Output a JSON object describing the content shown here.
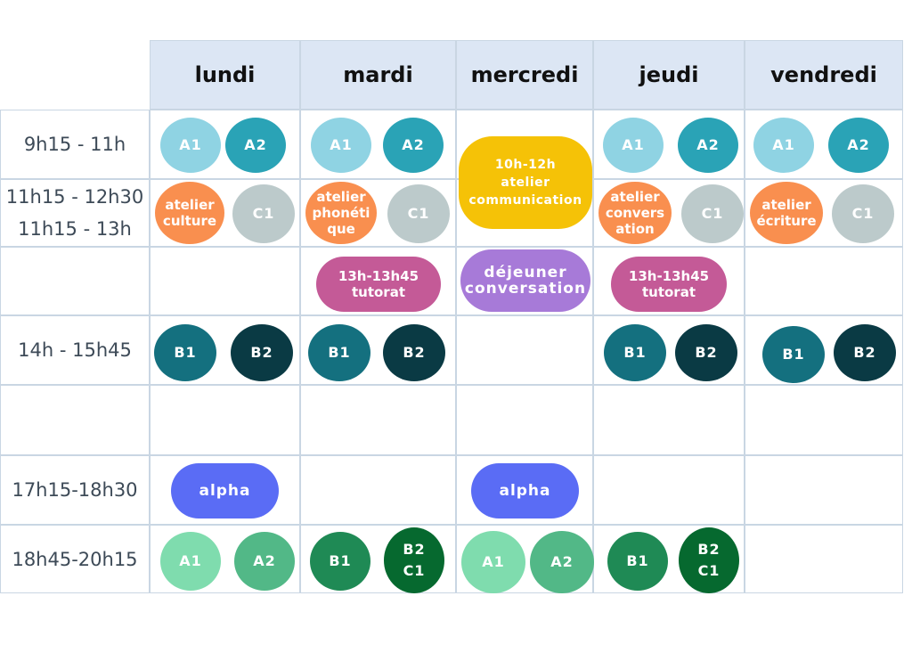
{
  "days": [
    "lundi",
    "mardi",
    "mercredi",
    "jeudi",
    "vendredi"
  ],
  "times": [
    [
      "9h15 - 11h"
    ],
    [
      "11h15 - 12h30",
      "11h15 - 13h"
    ],
    [
      ""
    ],
    [
      "14h - 15h45"
    ],
    [
      ""
    ],
    [
      "17h15-18h30"
    ],
    [
      "18h45-20h15"
    ]
  ],
  "colors": {
    "header": "#dce6f4",
    "border": "#c9d6e3",
    "a1_light": "#8fd3e3",
    "a2_teal": "#2aa3b6",
    "atelier_orange": "#f98f4f",
    "c1_grey": "#bccacb",
    "communication_yellow": "#f5c207",
    "tutorat_magenta": "#c45a97",
    "dejeuner_purple": "#a77ad8",
    "b1_teal": "#14707f",
    "b2_dark": "#0a3a44",
    "alpha_blue": "#5a6cf5",
    "eve_a1": "#7fdcae",
    "eve_a2": "#52b887",
    "eve_b1": "#1f8a55",
    "eve_b2c1": "#06692f"
  },
  "pills": [
    {
      "id": "mon-a1",
      "lines": [
        "A1"
      ],
      "color": "#8fd3e3"
    },
    {
      "id": "mon-a2",
      "lines": [
        "A2"
      ],
      "color": "#2aa3b6"
    },
    {
      "id": "tue-a1",
      "lines": [
        "A1"
      ],
      "color": "#8fd3e3"
    },
    {
      "id": "tue-a2",
      "lines": [
        "A2"
      ],
      "color": "#2aa3b6"
    },
    {
      "id": "thu-a1",
      "lines": [
        "A1"
      ],
      "color": "#8fd3e3"
    },
    {
      "id": "thu-a2",
      "lines": [
        "A2"
      ],
      "color": "#2aa3b6"
    },
    {
      "id": "fri-a1",
      "lines": [
        "A1"
      ],
      "color": "#8fd3e3"
    },
    {
      "id": "fri-a2",
      "lines": [
        "A2"
      ],
      "color": "#2aa3b6"
    },
    {
      "id": "wed-communication",
      "lines": [
        "10h-12h",
        "atelier",
        "communication"
      ],
      "color": "#f5c207"
    },
    {
      "id": "mon-atelier-culture",
      "lines": [
        "atelier",
        "culture"
      ],
      "color": "#f98f4f"
    },
    {
      "id": "mon-c1",
      "lines": [
        "C1"
      ],
      "color": "#bccacb"
    },
    {
      "id": "tue-atelier-phonetique",
      "lines": [
        "atelier",
        "phonéti",
        "que"
      ],
      "color": "#f98f4f"
    },
    {
      "id": "tue-c1",
      "lines": [
        "C1"
      ],
      "color": "#bccacb"
    },
    {
      "id": "thu-atelier-conversation",
      "lines": [
        "atelier",
        "convers",
        "ation"
      ],
      "color": "#f98f4f"
    },
    {
      "id": "thu-c1",
      "lines": [
        "C1"
      ],
      "color": "#bccacb"
    },
    {
      "id": "fri-atelier-ecriture",
      "lines": [
        "atelier",
        "écriture"
      ],
      "color": "#f98f4f"
    },
    {
      "id": "fri-c1",
      "lines": [
        "C1"
      ],
      "color": "#bccacb"
    },
    {
      "id": "tue-tutorat",
      "lines": [
        "13h-13h45",
        "tutorat"
      ],
      "color": "#c45a97"
    },
    {
      "id": "wed-dejeuner",
      "lines": [
        "déjeuner",
        "conversation"
      ],
      "color": "#a77ad8"
    },
    {
      "id": "thu-tutorat",
      "lines": [
        "13h-13h45",
        "tutorat"
      ],
      "color": "#c45a97"
    },
    {
      "id": "mon-b1",
      "lines": [
        "B1"
      ],
      "color": "#14707f"
    },
    {
      "id": "mon-b2",
      "lines": [
        "B2"
      ],
      "color": "#0a3a44"
    },
    {
      "id": "tue-b1",
      "lines": [
        "B1"
      ],
      "color": "#14707f"
    },
    {
      "id": "tue-b2",
      "lines": [
        "B2"
      ],
      "color": "#0a3a44"
    },
    {
      "id": "thu-b1",
      "lines": [
        "B1"
      ],
      "color": "#14707f"
    },
    {
      "id": "thu-b2",
      "lines": [
        "B2"
      ],
      "color": "#0a3a44"
    },
    {
      "id": "fri-b1",
      "lines": [
        "B1"
      ],
      "color": "#14707f"
    },
    {
      "id": "fri-b2",
      "lines": [
        "B2"
      ],
      "color": "#0a3a44"
    },
    {
      "id": "mon-alpha",
      "lines": [
        "alpha"
      ],
      "color": "#5a6cf5"
    },
    {
      "id": "wed-alpha",
      "lines": [
        "alpha"
      ],
      "color": "#5a6cf5"
    },
    {
      "id": "mon-eve-a1",
      "lines": [
        "A1"
      ],
      "color": "#7fdcae"
    },
    {
      "id": "mon-eve-a2",
      "lines": [
        "A2"
      ],
      "color": "#52b887"
    },
    {
      "id": "tue-eve-b1",
      "lines": [
        "B1"
      ],
      "color": "#1f8a55"
    },
    {
      "id": "tue-eve-b2c1",
      "lines": [
        "B2",
        "C1"
      ],
      "color": "#06692f"
    },
    {
      "id": "wed-eve-a1",
      "lines": [
        "A1"
      ],
      "color": "#7fdcae"
    },
    {
      "id": "wed-eve-a2",
      "lines": [
        "A2"
      ],
      "color": "#52b887"
    },
    {
      "id": "thu-eve-b1",
      "lines": [
        "B1"
      ],
      "color": "#1f8a55"
    },
    {
      "id": "thu-eve-b2c1",
      "lines": [
        "B2",
        "C1"
      ],
      "color": "#06692f"
    }
  ]
}
